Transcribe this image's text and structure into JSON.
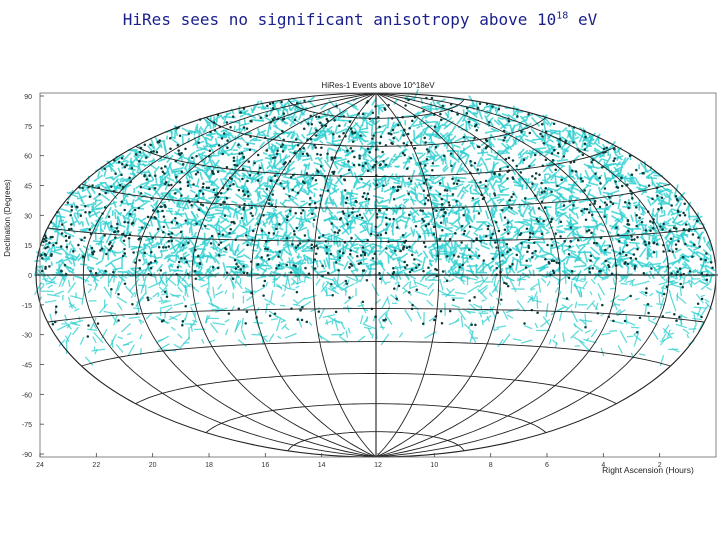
{
  "slide": {
    "title_main": "HiRes sees no significant anisotropy above 10",
    "title_exp": "18",
    "title_unit": " eV"
  },
  "chart_data": {
    "type": "scatter",
    "projection": "hammer-aitoff",
    "title": "HiRes-1 Events above 10^18eV",
    "ylabel": "Declination (Degrees)",
    "xlabel": "Right Ascension (Hours)",
    "xlim": [
      24,
      0
    ],
    "ylim": [
      -90,
      90
    ],
    "x_ticks": [
      "24",
      "22",
      "20",
      "18",
      "16",
      "14",
      "12",
      "10",
      "8",
      "6",
      "4",
      "2"
    ],
    "y_ticks": [
      "90",
      "75",
      "60",
      "45",
      "30",
      "15",
      "0",
      "-15",
      "-30",
      "-45",
      "-60",
      "-75",
      "-90"
    ],
    "grid": true,
    "colors": {
      "event_point": "#0b3b3b",
      "error_segment": "#2ecfd0",
      "grid": "#222222"
    },
    "series": [
      {
        "description_hidden": true,
        "dec_range_dense": [
          0,
          90
        ],
        "dec_range_sparse": [
          -30,
          0
        ],
        "approx_density": "uniform in RA above dec 0"
      }
    ]
  }
}
